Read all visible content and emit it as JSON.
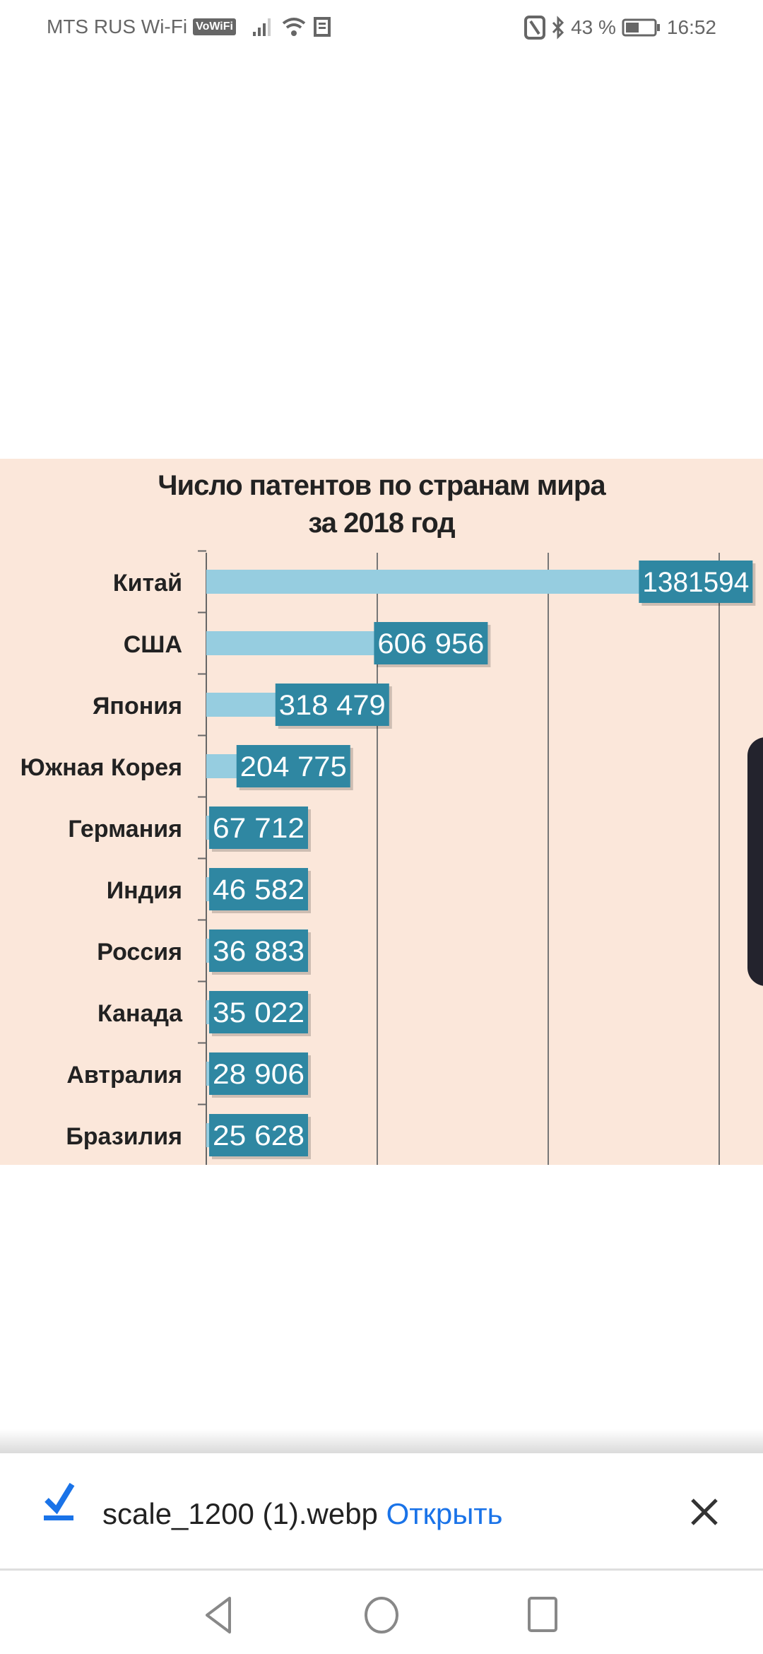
{
  "status_bar": {
    "carrier": "MTS RUS Wi-Fi",
    "vowifi_badge": "VoWiFi",
    "battery": "43 %",
    "time": "16:52"
  },
  "chart_data": {
    "type": "bar",
    "orientation": "horizontal",
    "title_line1": "Число патентов по странам мира",
    "title_line2": "за 2018 год",
    "categories": [
      "Китай",
      "США",
      "Япония",
      "Южная Корея",
      "Германия",
      "Индия",
      "Россия",
      "Канада",
      "Автралия",
      "Бразилия"
    ],
    "values": [
      1381594,
      606956,
      318479,
      204775,
      67712,
      46582,
      36883,
      35022,
      28906,
      25628
    ],
    "value_labels": [
      "1381594",
      "606 956",
      "318 479",
      "204 775",
      "67 712",
      "46 582",
      "36 883",
      "35 022",
      "28 906",
      "25 628"
    ],
    "xlim": [
      0,
      1500000
    ],
    "gridlines": [
      500000,
      1000000,
      1500000
    ],
    "grid": true,
    "bar_color": "#96cde0",
    "label_color": "#2f87a2",
    "background": "#fbe7da"
  },
  "download": {
    "filename": "scale_1200 (1).webp",
    "open_label": "Открыть",
    "accent": "#1a73e8"
  }
}
